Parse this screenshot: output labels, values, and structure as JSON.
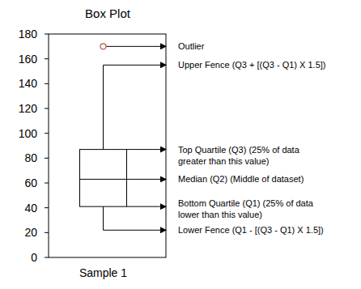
{
  "chart_data": {
    "type": "box",
    "title": "Box Plot",
    "categories": [
      "Sample 1"
    ],
    "boxes": [
      {
        "min": 22,
        "q1": 41,
        "median": 63,
        "q3": 87,
        "max": 155,
        "outliers": [
          170
        ]
      }
    ],
    "color": "#000000",
    "ylim": [
      0,
      180
    ],
    "yticks": [
      0,
      20,
      40,
      60,
      80,
      100,
      120,
      140,
      160,
      180
    ],
    "annotations": {
      "outliers": [
        "Outlier"
      ],
      "max": [
        "Upper Fence (Q3 + [(Q3 - Q1) X 1.5])"
      ],
      "q3": [
        "Top Quartile (Q3) (25% of data",
        "greater than this value)"
      ],
      "median": [
        "Median (Q2) (Middle of dataset)"
      ],
      "q1": [
        "Bottom Quartile (Q1) (25% of data",
        "lower than this value)"
      ],
      "min": [
        "Lower Fence (Q1 - [(Q3 - Q1) X 1.5])"
      ]
    }
  }
}
